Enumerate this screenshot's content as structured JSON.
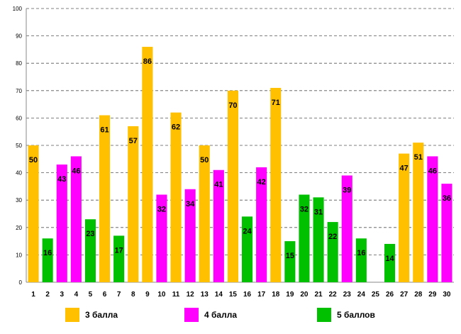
{
  "chart_data": {
    "type": "bar",
    "title": "",
    "xlabel": "",
    "ylabel": "",
    "ylim": [
      0,
      100
    ],
    "yticks": [
      "0",
      "10",
      "20",
      "30",
      "40",
      "50",
      "60",
      "70",
      "80",
      "90",
      "100"
    ],
    "grid": true,
    "categories": [
      "1",
      "2",
      "3",
      "4",
      "5",
      "6",
      "7",
      "8",
      "9",
      "10",
      "11",
      "12",
      "13",
      "14",
      "15",
      "16",
      "17",
      "18",
      "19",
      "20",
      "21",
      "22",
      "23",
      "24",
      "25",
      "26",
      "27",
      "28",
      "29",
      "30"
    ],
    "values": [
      50,
      16,
      43,
      46,
      23,
      61,
      17,
      57,
      86,
      32,
      62,
      34,
      50,
      41,
      70,
      24,
      42,
      71,
      15,
      32,
      31,
      22,
      39,
      16,
      null,
      14,
      47,
      51,
      46,
      36
    ],
    "groups": [
      "3",
      "5",
      "4",
      "4",
      "5",
      "3",
      "5",
      "3",
      "3",
      "4",
      "3",
      "4",
      "3",
      "4",
      "3",
      "5",
      "4",
      "3",
      "5",
      "5",
      "5",
      "5",
      "4",
      "5",
      null,
      "5",
      "3",
      "3",
      "4",
      "4"
    ],
    "series_legend": [
      {
        "key": "3",
        "name": "3 балла",
        "color": "#FFC000"
      },
      {
        "key": "4",
        "name": "4 балла",
        "color": "#FF00FF"
      },
      {
        "key": "5",
        "name": "5 баллов",
        "color": "#00C000"
      }
    ],
    "legend_position": "bottom"
  }
}
